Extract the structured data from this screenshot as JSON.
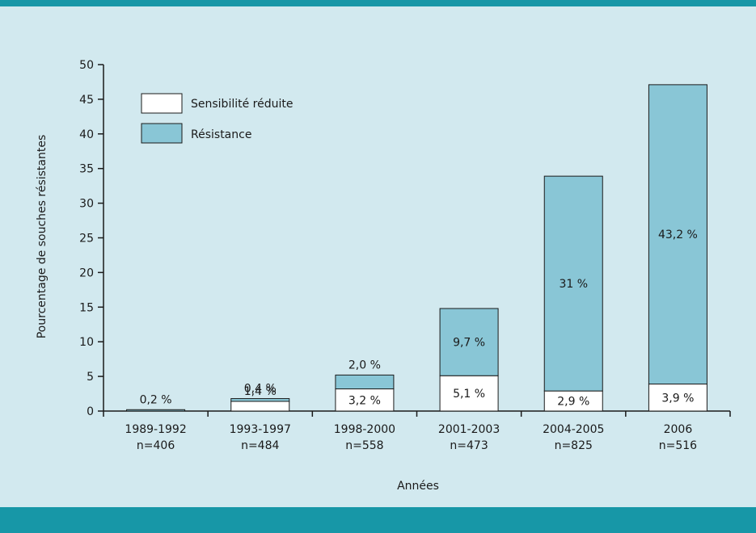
{
  "colors": {
    "background": "#d2e9ef",
    "band": "#1797a7",
    "resistance": "#89c6d6",
    "reduced": "#ffffff",
    "stroke": "#1a1a1a"
  },
  "chart_data": {
    "type": "bar",
    "stacked": true,
    "xlabel": "Années",
    "ylabel": "Pourcentage de souches résistantes",
    "ylim": [
      0,
      50
    ],
    "yticks": [
      0,
      5,
      10,
      15,
      20,
      25,
      30,
      35,
      40,
      45,
      50
    ],
    "grid": false,
    "legend_position": "top-left",
    "categories": [
      {
        "period": "1989-1992",
        "n": "n=406"
      },
      {
        "period": "1993-1997",
        "n": "n=484"
      },
      {
        "period": "1998-2000",
        "n": "n=558"
      },
      {
        "period": "2001-2003",
        "n": "n=473"
      },
      {
        "period": "2004-2005",
        "n": "n=825"
      },
      {
        "period": "2006",
        "n": "n=516"
      }
    ],
    "series": [
      {
        "name": "Sensibilité réduite",
        "color": "#ffffff",
        "values": [
          0,
          1.4,
          3.2,
          5.1,
          2.9,
          3.9
        ],
        "labels": [
          "",
          "1,4 %",
          "3,2 %",
          "5,1 %",
          "2,9 %",
          "3,9 %"
        ]
      },
      {
        "name": "Résistance",
        "color": "#89c6d6",
        "values": [
          0.2,
          0.4,
          2.0,
          9.7,
          31,
          43.2
        ],
        "labels": [
          "0,2 %",
          "0,4 %",
          "2,0 %",
          "9,7 %",
          "31 %",
          "43,2 %"
        ]
      }
    ]
  }
}
